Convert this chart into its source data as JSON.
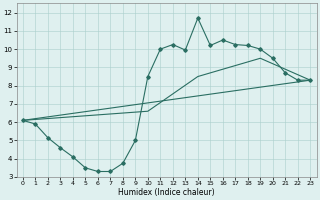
{
  "xlabel": "Humidex (Indice chaleur)",
  "xlim": [
    -0.5,
    23.5
  ],
  "ylim": [
    3,
    12.5
  ],
  "yticks": [
    3,
    4,
    5,
    6,
    7,
    8,
    9,
    10,
    11,
    12
  ],
  "xticks": [
    0,
    1,
    2,
    3,
    4,
    5,
    6,
    7,
    8,
    9,
    10,
    11,
    12,
    13,
    14,
    15,
    16,
    17,
    18,
    19,
    20,
    21,
    22,
    23
  ],
  "line_color": "#2a6e62",
  "bg_color": "#dff0ef",
  "grid_color": "#aacfcc",
  "line1_x": [
    0,
    1,
    2,
    3,
    4,
    5,
    6,
    7,
    8,
    9,
    10,
    11,
    12,
    13,
    14,
    15,
    16,
    17,
    18,
    19,
    20,
    21,
    22,
    23
  ],
  "line1_y": [
    6.1,
    5.9,
    5.15,
    4.6,
    4.1,
    3.5,
    3.3,
    3.3,
    3.75,
    5.0,
    8.5,
    10.0,
    10.25,
    9.95,
    11.7,
    10.2,
    10.5,
    10.25,
    10.2,
    10.0,
    9.5,
    8.7,
    8.3,
    8.3
  ],
  "line2_x": [
    0,
    23
  ],
  "line2_y": [
    6.1,
    8.3
  ],
  "line3_x": [
    0,
    10,
    14,
    19,
    23
  ],
  "line3_y": [
    6.1,
    6.6,
    8.5,
    9.5,
    8.3
  ]
}
